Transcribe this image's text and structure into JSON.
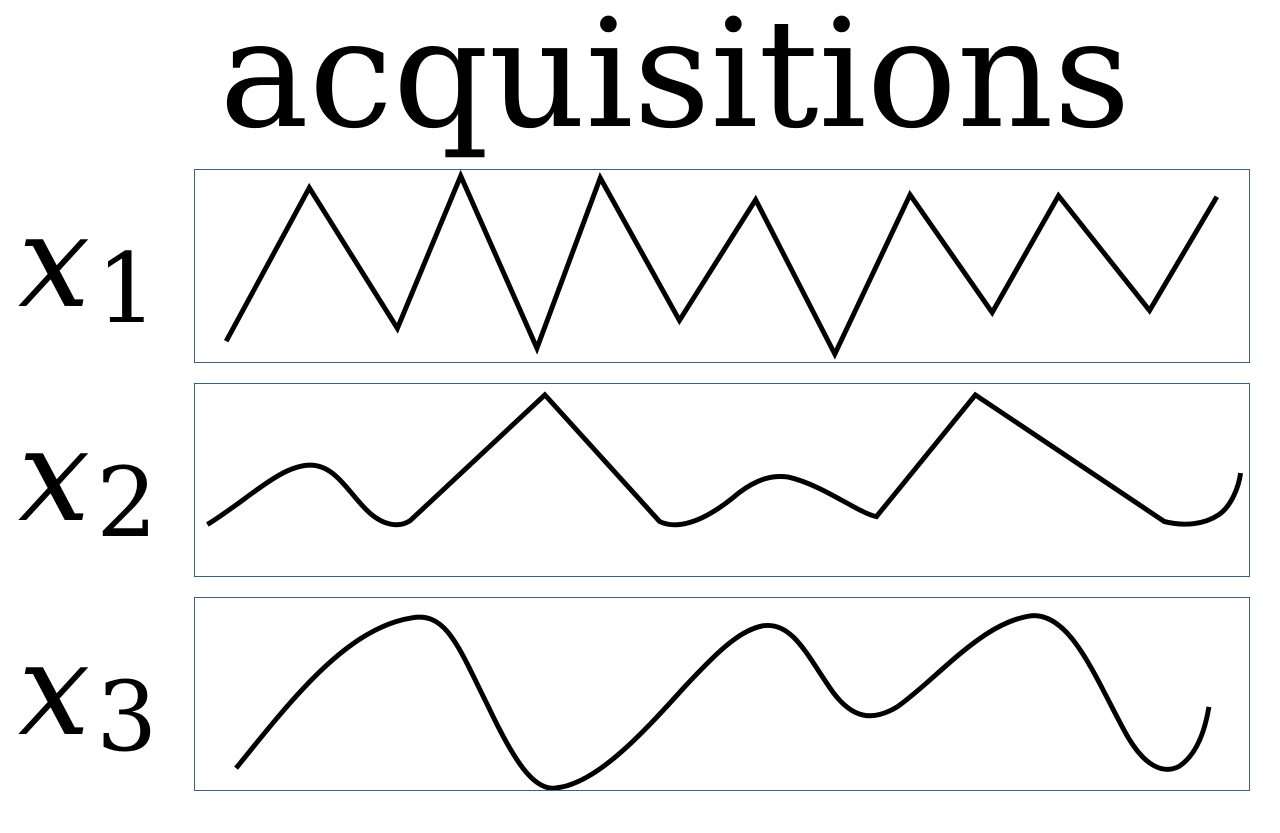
{
  "title": "acquisitions",
  "rows": [
    {
      "variable": "x",
      "subscript": "1",
      "signal_style": "sawtooth"
    },
    {
      "variable": "x",
      "subscript": "2",
      "signal_style": "mixed"
    },
    {
      "variable": "x",
      "subscript": "3",
      "signal_style": "smooth"
    }
  ],
  "colors": {
    "ink": "#000000",
    "frame": "#3f5f78",
    "background": "#ffffff"
  }
}
